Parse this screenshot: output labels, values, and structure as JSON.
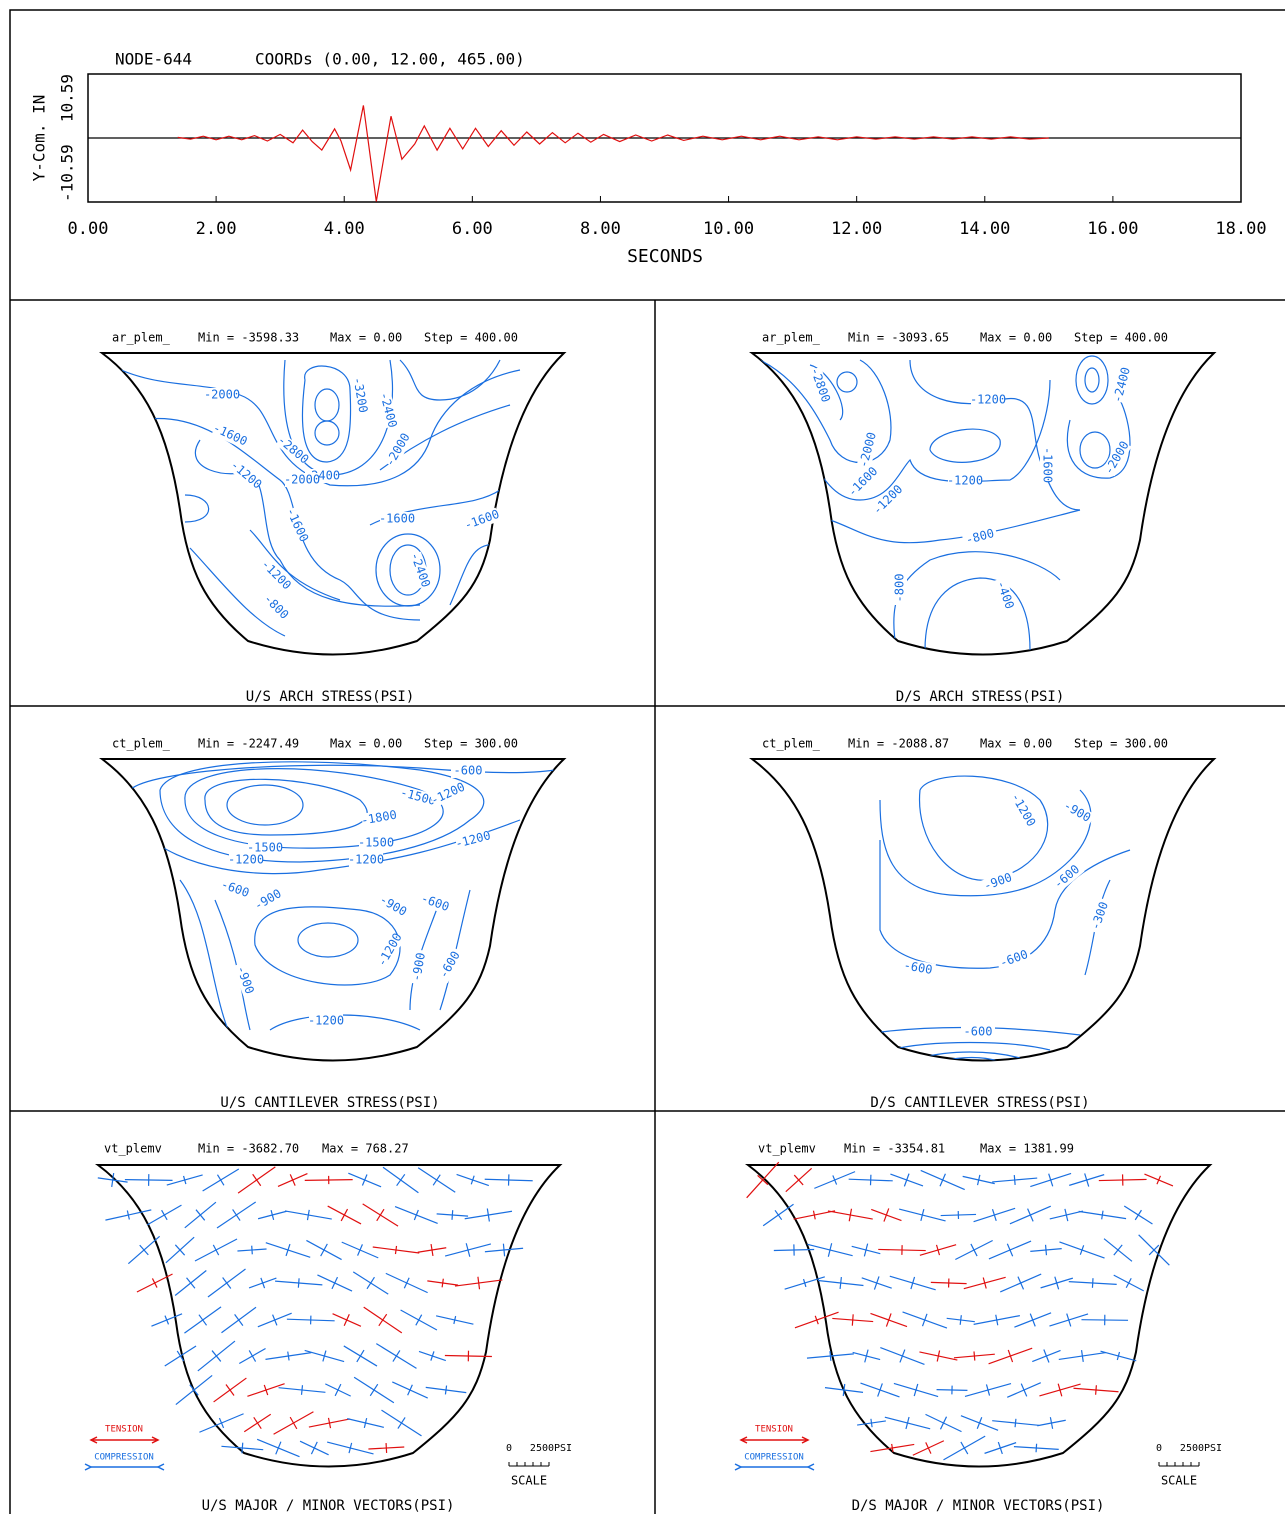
{
  "chart_data": {
    "type": "line",
    "title": "NODE-644",
    "subtitle": "COORDs (0.00, 12.00, 465.00)",
    "xlabel": "SECONDS",
    "ylabel": "Y-Com.  IN",
    "color": "#e01010",
    "x": [
      1.4,
      1.6,
      1.8,
      2.0,
      2.2,
      2.4,
      2.6,
      2.8,
      3.0,
      3.2,
      3.35,
      3.5,
      3.65,
      3.85,
      3.95,
      4.1,
      4.3,
      4.5,
      4.73,
      4.9,
      5.1,
      5.25,
      5.45,
      5.65,
      5.85,
      6.05,
      6.25,
      6.45,
      6.65,
      6.85,
      7.05,
      7.25,
      7.45,
      7.65,
      7.85,
      8.05,
      8.3,
      8.55,
      8.8,
      9.05,
      9.3,
      9.6,
      9.9,
      10.2,
      10.5,
      10.8,
      11.1,
      11.4,
      11.7,
      12.0,
      12.3,
      12.6,
      12.9,
      13.2,
      13.5,
      13.8,
      14.1,
      14.4,
      14.7,
      15.0
    ],
    "values": [
      0.1,
      -0.2,
      0.3,
      -0.3,
      0.3,
      -0.3,
      0.4,
      -0.5,
      0.6,
      -0.8,
      1.3,
      -0.6,
      -2.0,
      1.5,
      -0.5,
      -5.3,
      5.4,
      -10.5,
      3.6,
      -3.5,
      -1.0,
      2.0,
      -2.0,
      1.6,
      -1.8,
      1.6,
      -1.4,
      1.2,
      -1.2,
      1.0,
      -1.0,
      0.9,
      -0.8,
      0.8,
      -0.7,
      0.6,
      -0.6,
      0.5,
      -0.5,
      0.5,
      -0.4,
      0.3,
      -0.3,
      0.3,
      -0.3,
      0.3,
      -0.3,
      0.2,
      -0.3,
      0.2,
      -0.2,
      0.2,
      -0.2,
      0.2,
      -0.2,
      0.2,
      -0.2,
      0.2,
      -0.2,
      0.0
    ],
    "xlim": [
      0,
      18
    ],
    "xticks": [
      {
        "value": 0,
        "label": "0.00"
      },
      {
        "value": 2,
        "label": "2.00"
      },
      {
        "value": 4,
        "label": "4.00"
      },
      {
        "value": 6,
        "label": "6.00"
      },
      {
        "value": 8,
        "label": "8.00"
      },
      {
        "value": 10,
        "label": "10.00"
      },
      {
        "value": 12,
        "label": "12.00"
      },
      {
        "value": 14,
        "label": "14.00"
      },
      {
        "value": 16,
        "label": "16.00"
      },
      {
        "value": 18,
        "label": "18.00"
      }
    ],
    "ylim": [
      -10.59,
      10.59
    ],
    "yticks": [
      -10.59,
      10.59
    ]
  },
  "panels": [
    {
      "name": "ar_plem_",
      "min": "Min = -3598.33",
      "max": "Max = 0.00",
      "step": "Step = 400.00",
      "caption": "U/S ARCH STRESS(PSI)",
      "contour_labels": [
        "-2000",
        "-1600",
        "-3200",
        "-2400",
        "-2800",
        "-2400",
        "-2000",
        "-1200",
        "-2000",
        "-1600",
        "-1600",
        "-1600",
        "-2400",
        "-1200",
        "-800"
      ]
    },
    {
      "name": "ar_plem_",
      "min": "Min = -3093.65",
      "max": "Max = 0.00",
      "step": "Step = 400.00",
      "caption": "D/S ARCH STRESS(PSI)",
      "contour_labels": [
        "-2800",
        "-1200",
        "-2400",
        "-2000",
        "-1600",
        "-2000",
        "-1600",
        "-1200",
        "-1200",
        "-800",
        "-800",
        "-400"
      ]
    },
    {
      "name": "ct_plem_",
      "min": "Min = -2247.49",
      "max": "Max = 0.00",
      "step": "Step = 300.00",
      "caption": "U/S CANTILEVER STRESS(PSI)",
      "contour_labels": [
        "-600",
        "-1500",
        "-1200",
        "-1800",
        "-1500",
        "-1500",
        "-1200",
        "-1200",
        "-1200",
        "-600",
        "-900",
        "-900",
        "-600",
        "-1200",
        "-900",
        "-900",
        "-600",
        "-1200"
      ]
    },
    {
      "name": "ct_plem_",
      "min": "Min = -2088.87",
      "max": "Max = 0.00",
      "step": "Step = 300.00",
      "caption": "D/S CANTILEVER STRESS(PSI)",
      "contour_labels": [
        "-1200",
        "-900",
        "-900",
        "-600",
        "-300",
        "-600",
        "-600",
        "-600"
      ]
    },
    {
      "name": "vt_plemv",
      "min": "Min = -3682.70",
      "max": "Max = 768.27",
      "caption": "U/S MAJOR / MINOR  VECTORS(PSI)",
      "legend": [
        "TENSION",
        "COMPRESSION"
      ],
      "scale": [
        "0",
        "2500PSI",
        "SCALE"
      ]
    },
    {
      "name": "vt_plemv",
      "min": "Min = -3354.81",
      "max": "Max = 1381.99",
      "caption": "D/S MAJOR / MINOR  VECTORS(PSI)",
      "legend": [
        "TENSION",
        "COMPRESSION"
      ],
      "scale": [
        "0",
        "2500PSI",
        "SCALE"
      ]
    }
  ]
}
